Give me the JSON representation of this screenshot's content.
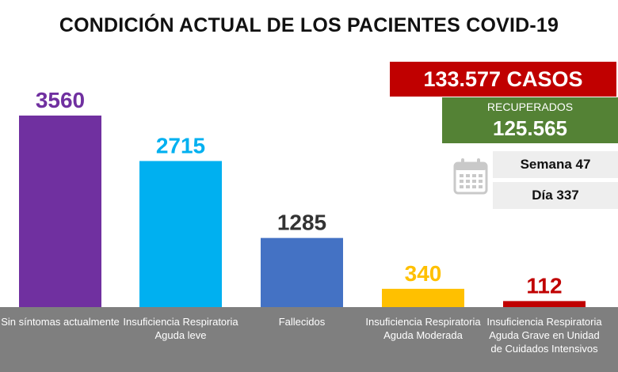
{
  "title": "CONDICIÓN ACTUAL DE LOS PACIENTES COVID-19",
  "summary": {
    "casos": "133.577 CASOS",
    "recuperados_label": "RECUPERADOS",
    "recuperados_value": "125.565",
    "semana": "Semana 47",
    "dia": "Día 337"
  },
  "colors": {
    "casos_bg": "#c00000",
    "recuperados_bg": "#548235",
    "axis_band": "#7f7f7f"
  },
  "chart_data": {
    "type": "bar",
    "categories": [
      "Sin síntomas actualmente",
      "Insuficiencia Respiratoria Aguda leve",
      "Fallecidos",
      "Insuficiencia Respiratoria Aguda Moderada",
      "Insuficiencia Respiratoria Aguda Grave en Unidad de Cuidados Intensivos"
    ],
    "values": [
      3560,
      2715,
      1285,
      340,
      112
    ],
    "value_labels": [
      "3560",
      "2715",
      "1285",
      "340",
      "112"
    ],
    "bar_colors": [
      "#7030a0",
      "#00b0f0",
      "#4472c4",
      "#ffc000",
      "#c00000"
    ],
    "label_colors": [
      "#7030a0",
      "#00b0f0",
      "#333333",
      "#ffc000",
      "#c00000"
    ],
    "title": "CONDICIÓN ACTUAL DE LOS PACIENTES COVID-19",
    "xlabel": "",
    "ylabel": "",
    "ylim": [
      0,
      3560
    ],
    "grid": false
  }
}
